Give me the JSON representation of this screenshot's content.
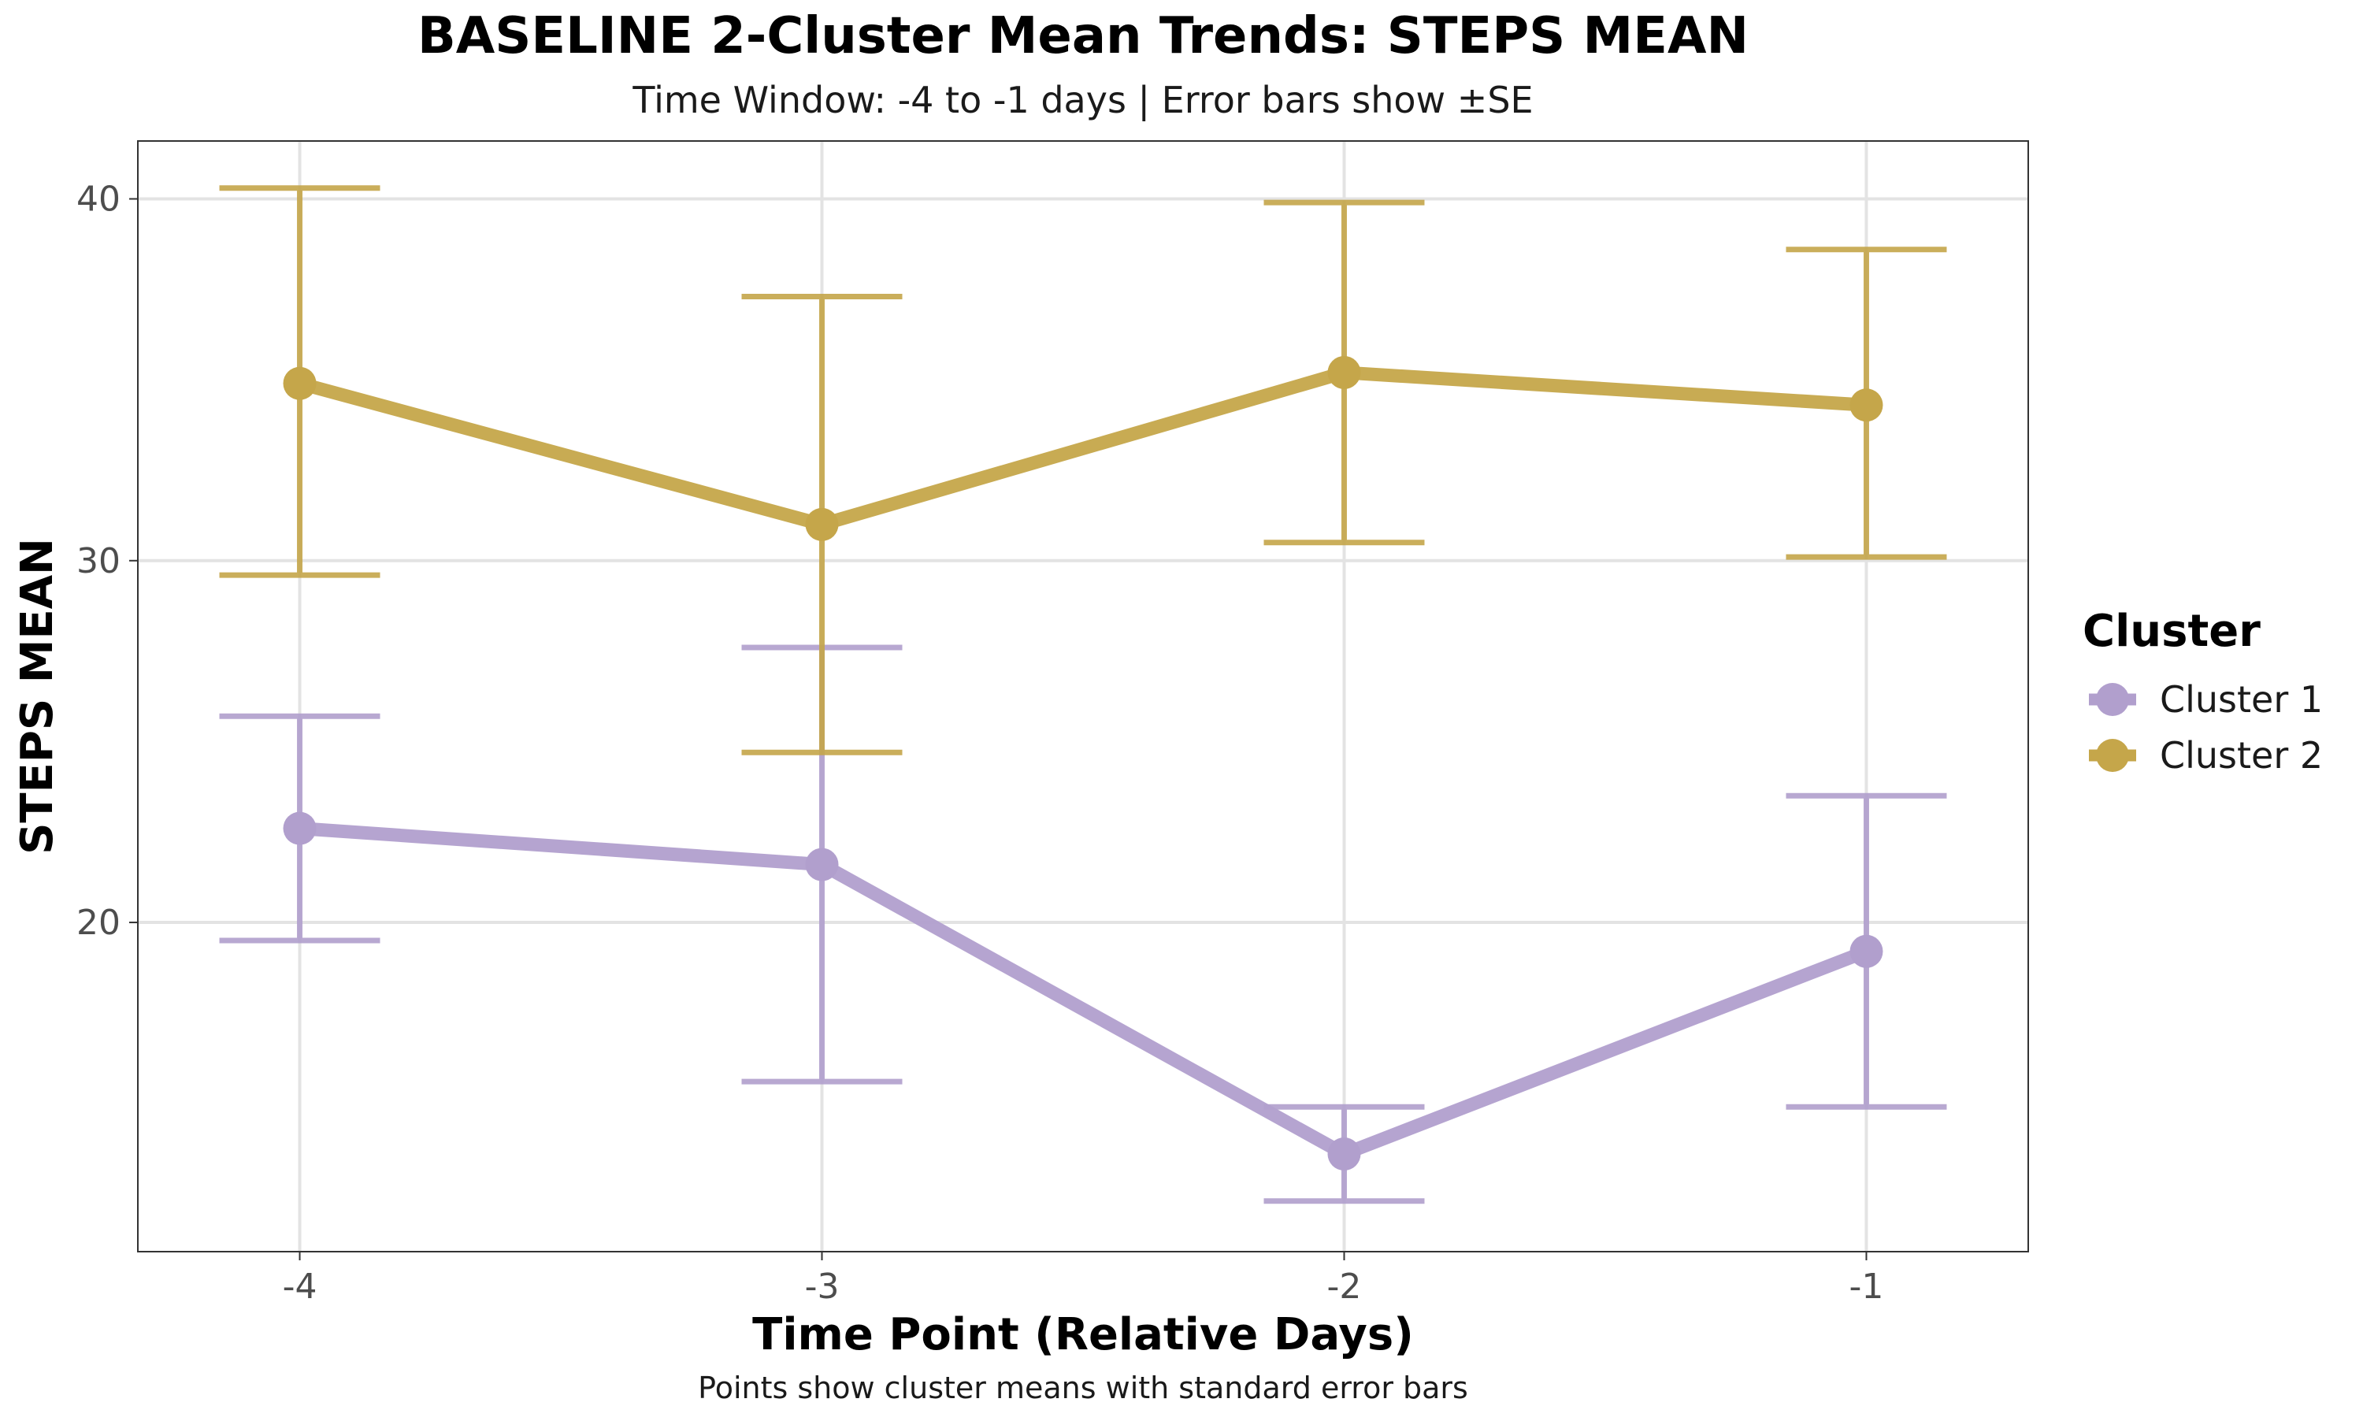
{
  "chart_data": {
    "type": "line",
    "title": "BASELINE 2-Cluster Mean Trends: STEPS MEAN",
    "subtitle": "Time Window: -4 to -1 days | Error bars show ±SE",
    "xlabel": "Time Point (Relative Days)",
    "ylabel": "STEPS MEAN",
    "caption": "Points show cluster means with standard error bars",
    "x": [
      -4,
      -3,
      -2,
      -1
    ],
    "x_tick_labels": [
      "-4",
      "-3",
      "-2",
      "-1"
    ],
    "y_ticks": [
      20,
      30,
      40
    ],
    "y_tick_labels": [
      "20",
      "30",
      "40"
    ],
    "xlim": [
      -4.31,
      -0.69
    ],
    "ylim": [
      10.9,
      41.6
    ],
    "grid": true,
    "legend": {
      "title": "Cluster",
      "placement": "right"
    },
    "error_bars": "±SE",
    "series": [
      {
        "name": "Cluster 1",
        "color": "#b19fcd",
        "values": [
          22.6,
          21.6,
          13.6,
          19.2
        ],
        "lower": [
          19.5,
          15.6,
          12.3,
          14.9
        ],
        "upper": [
          25.7,
          27.6,
          14.9,
          23.5
        ]
      },
      {
        "name": "Cluster 2",
        "color": "#c5a64a",
        "values": [
          34.9,
          31.0,
          35.2,
          34.3
        ],
        "lower": [
          29.6,
          24.7,
          30.5,
          30.1
        ],
        "upper": [
          40.3,
          37.3,
          39.9,
          38.6
        ]
      }
    ]
  }
}
